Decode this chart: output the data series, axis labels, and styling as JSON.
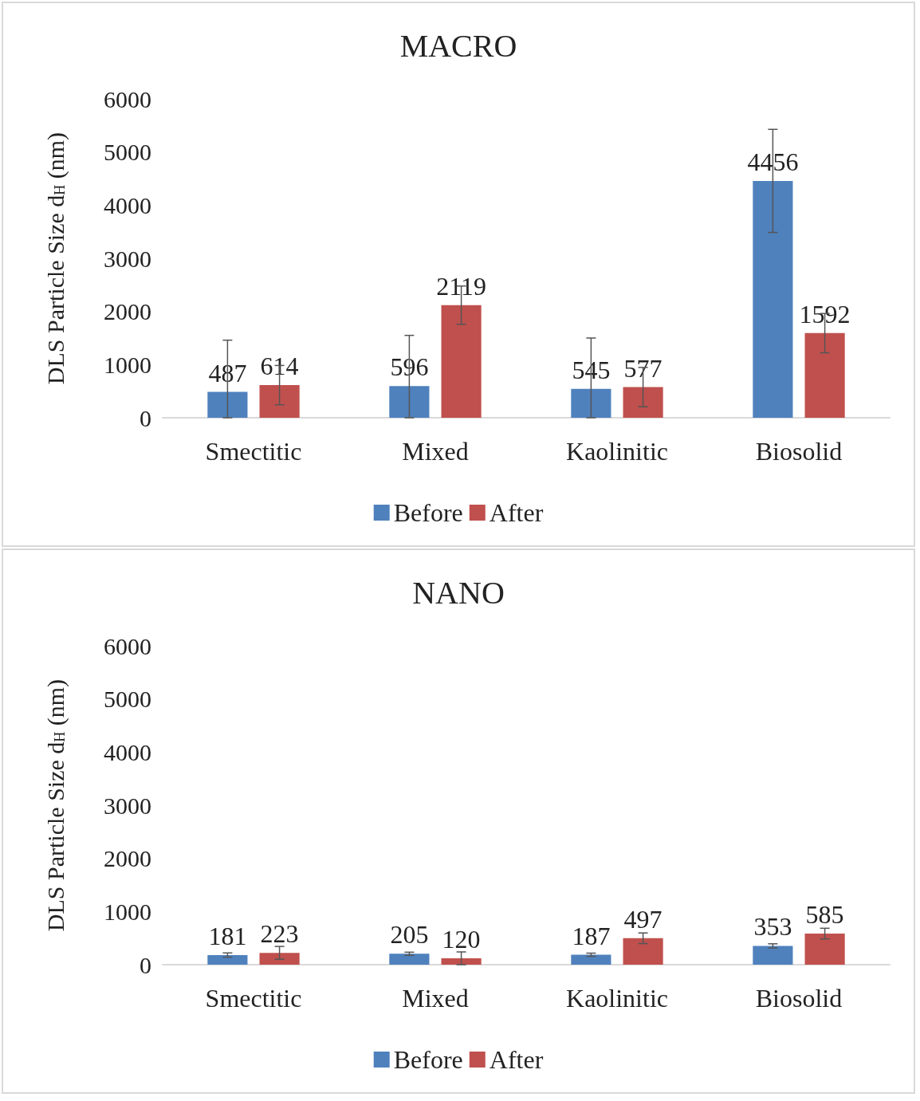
{
  "chart_data": [
    {
      "type": "bar",
      "title": "MACRO",
      "ylabel": "DLS Particle Size d$_{H}$ (nm)",
      "categories": [
        "Smectitic",
        "Mixed",
        "Kaolinitic",
        "Biosolid"
      ],
      "series": [
        {
          "name": "Before",
          "color": "#4f81bd",
          "values": [
            487,
            596,
            545,
            4456
          ],
          "errors": [
            [
              0,
              1460
            ],
            [
              0,
              1550
            ],
            [
              0,
              1500
            ],
            970
          ]
        },
        {
          "name": "After",
          "color": "#c0504d",
          "values": [
            614,
            2119,
            577,
            1592
          ],
          "errors": [
            370,
            360,
            370,
            370
          ]
        }
      ],
      "ylim": [
        0,
        6000
      ],
      "yticks": [
        0,
        1000,
        2000,
        3000,
        4000,
        5000,
        6000
      ],
      "grid": false,
      "legend": "bottom",
      "data_labels": true
    },
    {
      "type": "bar",
      "title": "NANO",
      "ylabel": "DLS Particle Size d$_{H}$ (nm)",
      "categories": [
        "Smectitic",
        "Mixed",
        "Kaolinitic",
        "Biosolid"
      ],
      "series": [
        {
          "name": "Before",
          "color": "#4f81bd",
          "values": [
            181,
            205,
            187,
            353
          ],
          "errors": [
            40,
            30,
            30,
            40
          ]
        },
        {
          "name": "After",
          "color": "#c0504d",
          "values": [
            223,
            120,
            497,
            585
          ],
          "errors": [
            120,
            120,
            100,
            100
          ]
        }
      ],
      "ylim": [
        0,
        6000
      ],
      "yticks": [
        0,
        1000,
        2000,
        3000,
        4000,
        5000,
        6000
      ],
      "grid": false,
      "legend": "bottom",
      "data_labels": true
    }
  ]
}
